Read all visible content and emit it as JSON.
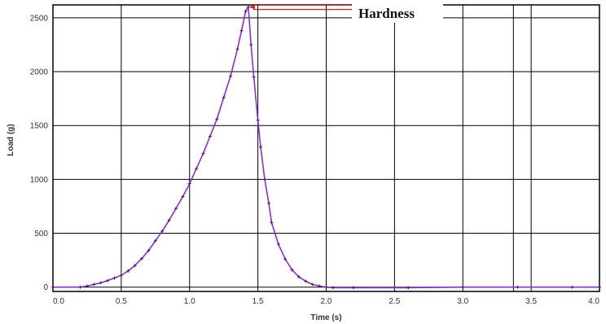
{
  "chart_data": {
    "type": "line",
    "xlabel": "Time (s)",
    "ylabel": "Load (g)",
    "xlim": [
      0,
      4.0
    ],
    "ylim": [
      -40,
      2620
    ],
    "x_ticks": [
      "0.0",
      "0.5",
      "1.0",
      "1.5",
      "2.0",
      "2.5",
      "3.0",
      "3.5",
      "4.0"
    ],
    "y_ticks": [
      "0",
      "500",
      "1000",
      "1500",
      "2000",
      "2500"
    ],
    "grid": true,
    "extra_vertical_gridlines": [
      3.37
    ],
    "series": [
      {
        "color": "#8a2be2",
        "marker": "plus",
        "x": [
          0.0,
          0.2,
          0.25,
          0.3,
          0.35,
          0.4,
          0.45,
          0.5,
          0.55,
          0.6,
          0.65,
          0.7,
          0.75,
          0.8,
          0.85,
          0.9,
          0.95,
          1.0,
          1.05,
          1.1,
          1.15,
          1.2,
          1.25,
          1.3,
          1.35,
          1.38,
          1.41,
          1.43,
          1.45,
          1.47,
          1.5,
          1.52,
          1.55,
          1.58,
          1.6,
          1.65,
          1.7,
          1.75,
          1.8,
          1.85,
          1.9,
          1.95,
          2.0,
          2.05,
          2.2,
          2.6,
          3.0,
          3.4,
          3.8,
          4.0
        ],
        "y": [
          0,
          0,
          10,
          25,
          40,
          60,
          85,
          110,
          150,
          200,
          265,
          340,
          430,
          520,
          620,
          730,
          840,
          960,
          1100,
          1240,
          1400,
          1560,
          1760,
          1960,
          2210,
          2380,
          2560,
          2600,
          2250,
          1950,
          1550,
          1300,
          1000,
          780,
          600,
          400,
          260,
          160,
          95,
          55,
          25,
          10,
          0,
          -5,
          -5,
          -5,
          0,
          0,
          0,
          0
        ]
      }
    ],
    "peak": {
      "x": 1.43,
      "y": 2600
    },
    "annotations": [
      {
        "text": "Hardness",
        "color": "#d42020"
      }
    ]
  }
}
